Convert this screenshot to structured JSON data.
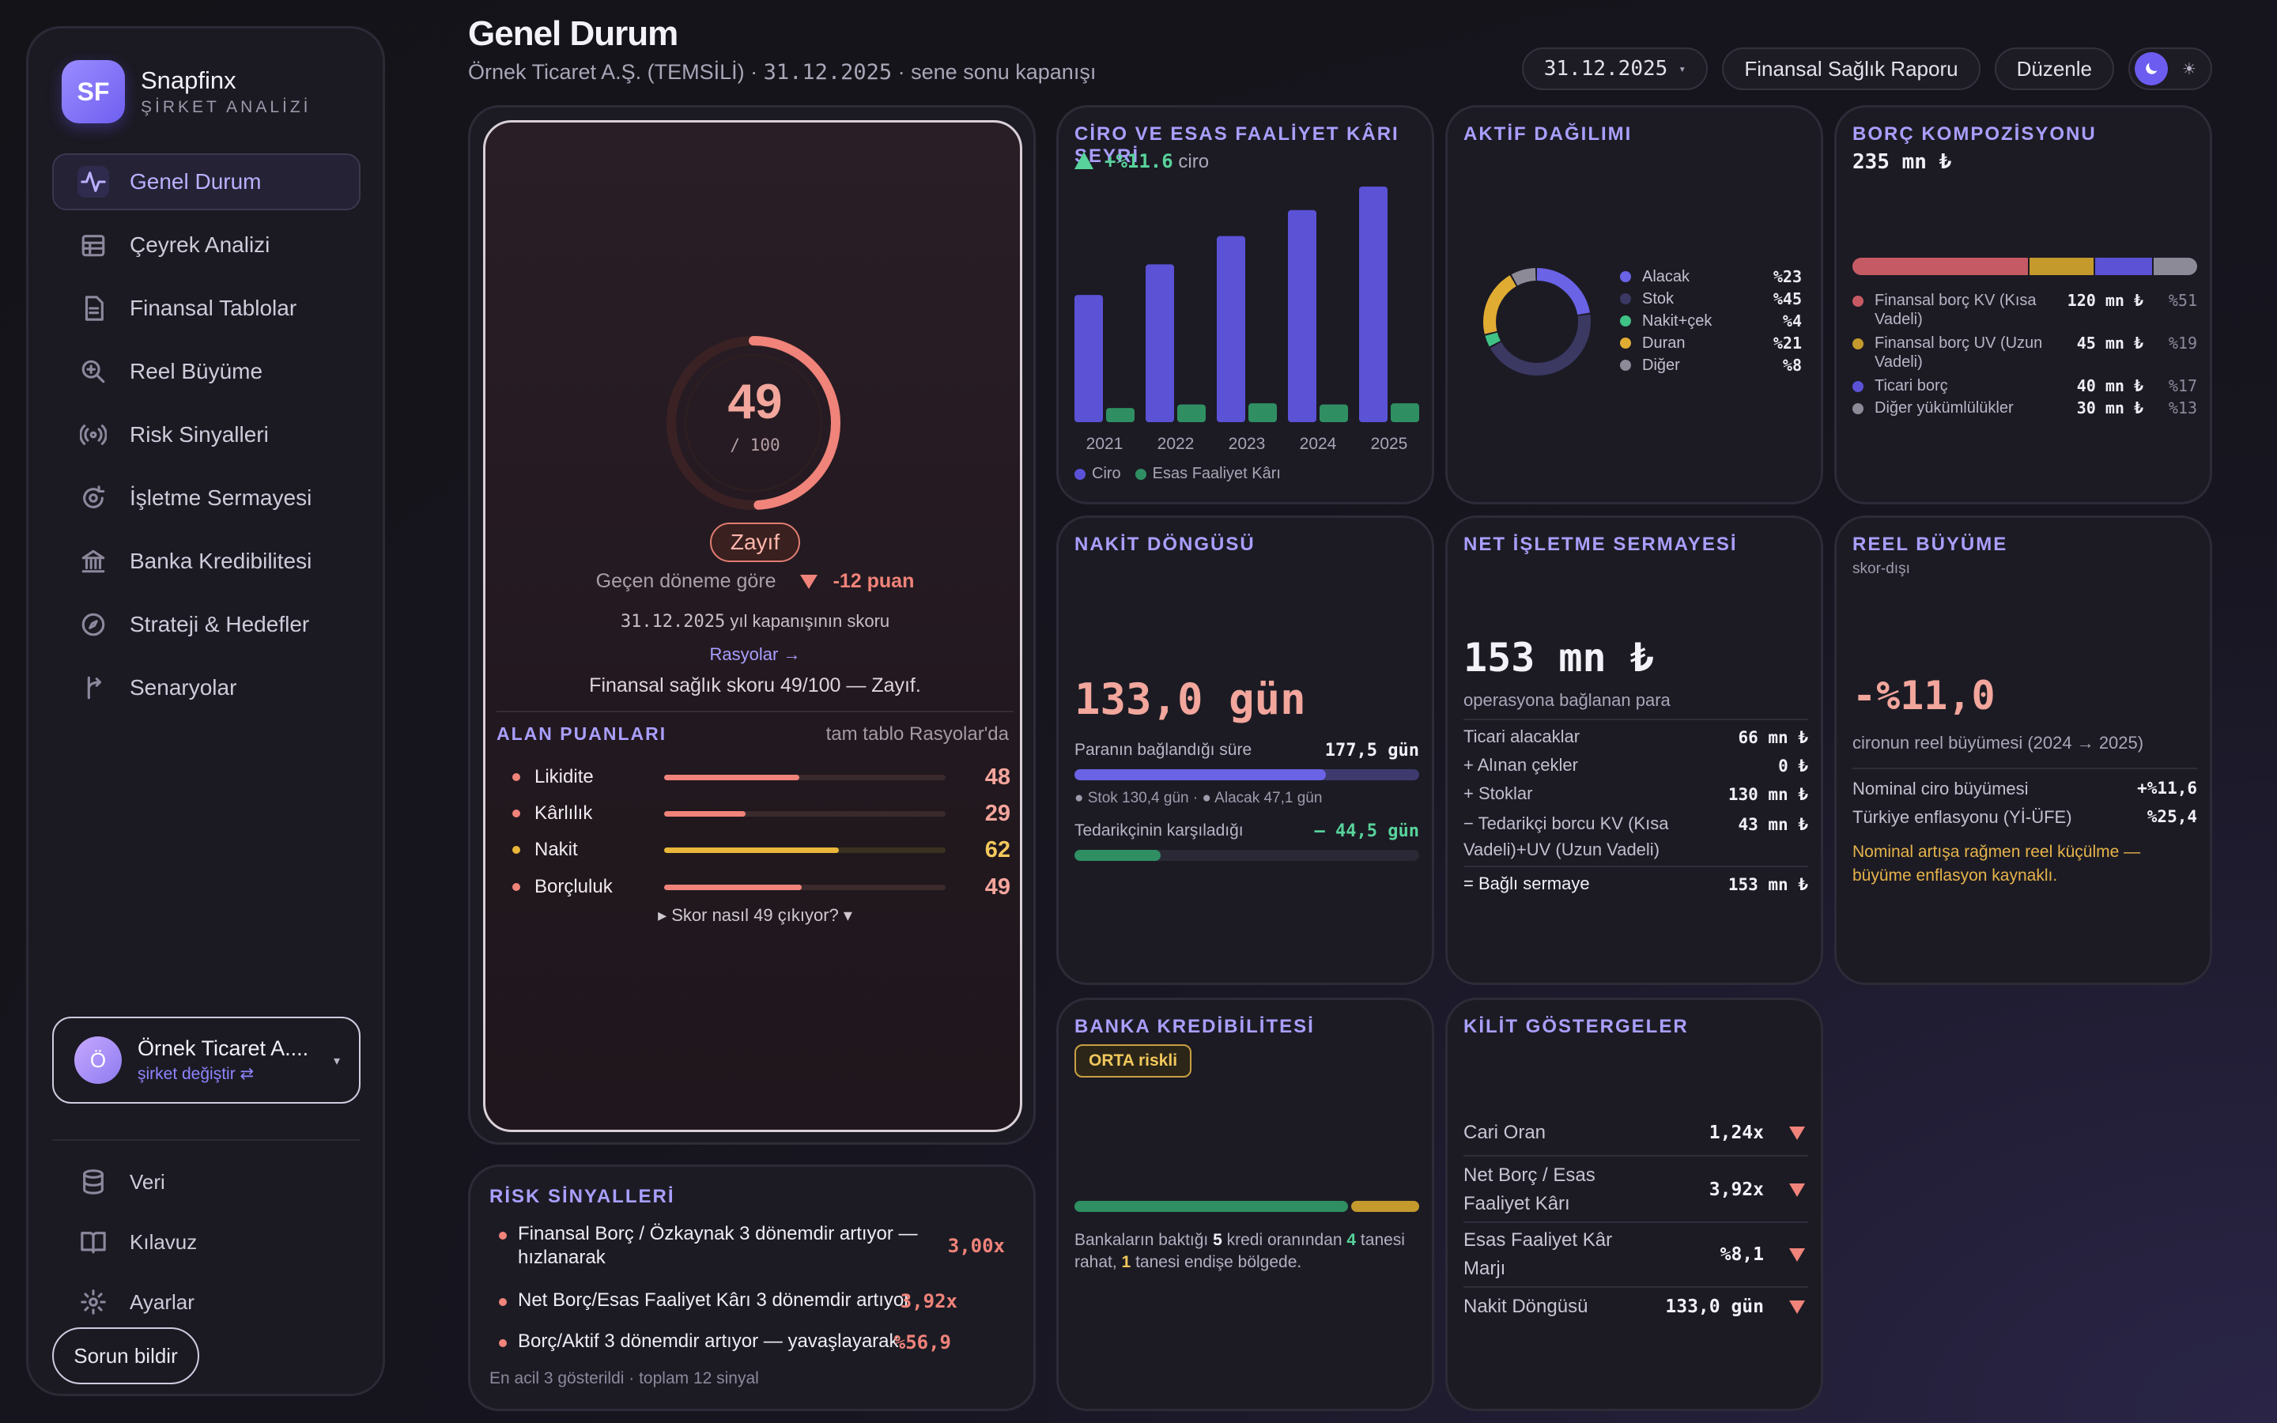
{
  "brand": {
    "logo": "SF",
    "name": "Snapfinx",
    "tagline": "ŞİRKET ANALİZİ"
  },
  "nav": [
    {
      "label": "Genel Durum",
      "icon": "activity-icon"
    },
    {
      "label": "Çeyrek Analizi",
      "icon": "calendar-grid-icon"
    },
    {
      "label": "Finansal Tablolar",
      "icon": "document-icon"
    },
    {
      "label": "Reel Büyüme",
      "icon": "zoom-in-icon"
    },
    {
      "label": "Risk Sinyalleri",
      "icon": "radio-signal-icon"
    },
    {
      "label": "İşletme Sermayesi",
      "icon": "cycle-icon"
    },
    {
      "label": "Banka Kredibilitesi",
      "icon": "bank-icon"
    },
    {
      "label": "Strateji & Hedefler",
      "icon": "compass-icon"
    },
    {
      "label": "Senaryolar",
      "icon": "branch-icon"
    }
  ],
  "company": {
    "avatar": "Ö",
    "name": "Örnek Ticaret A....",
    "switch": "şirket değiştir ⇄"
  },
  "nav2": [
    {
      "label": "Veri",
      "icon": "database-icon"
    },
    {
      "label": "Kılavuz",
      "icon": "book-icon"
    },
    {
      "label": "Ayarlar",
      "icon": "gear-icon"
    }
  ],
  "report_issue": "Sorun bildir",
  "header": {
    "title": "Genel Durum",
    "subtitle_company": "Örnek Ticaret A.Ş. (TEMSİLİ)",
    "subtitle_sep": " · ",
    "subtitle_date": "31.12.2025",
    "subtitle_tail": " · sene sonu kapanışı",
    "date_select": "31.12.2025",
    "report_btn": "Finansal Sağlık Raporu",
    "edit_btn": "Düzenle",
    "sun_glyph": "☀"
  },
  "score": {
    "value": "49",
    "max": "/ 100",
    "fraction": 0.49,
    "grade": "Zayıf",
    "delta_label": "Geçen döneme göre",
    "delta_value": "-12 puan",
    "date": "31.12.2025",
    "date_tail": " yıl kapanışının skoru",
    "ratios_link": "Rasyolar →",
    "summary": "Finansal sağlık skoru 49/100 — Zayıf.",
    "area_title": "ALAN PUANLARI",
    "area_note": "tam tablo Rasyolar'da",
    "areas": [
      {
        "label": "Likidite",
        "value": "48",
        "fraction": 0.48,
        "color": "#f0837a"
      },
      {
        "label": "Kârlılık",
        "value": "29",
        "fraction": 0.29,
        "color": "#f0837a"
      },
      {
        "label": "Nakit",
        "value": "62",
        "fraction": 0.62,
        "color": "#e9b63a"
      },
      {
        "label": "Borçluluk",
        "value": "49",
        "fraction": 0.49,
        "color": "#f0837a"
      }
    ],
    "how": "▸ Skor nasıl 49 çıkıyor? ▾"
  },
  "risk": {
    "title": "RİSK SİNYALLERİ",
    "items": [
      {
        "text": "Finansal Borç / Özkaynak 3 dönemdir artıyor — hızlanarak",
        "value": "3,00x"
      },
      {
        "text": "Net Borç/Esas Faaliyet Kârı 3 dönemdir artıyor",
        "value": "3,92x"
      },
      {
        "text": "Borç/Aktif 3 dönemdir artıyor — yavaşlayarak",
        "value": "%56,9"
      }
    ],
    "footer": "En acil 3 gösterildi · toplam 12 sinyal"
  },
  "ciro": {
    "title": "CİRO VE ESAS FAALİYET KÂRI SEYRİ",
    "growth": "+%11.6",
    "growth_tail": " ciro",
    "legend": [
      "Ciro",
      "Esas Faaliyet Kârı"
    ]
  },
  "chart_data": {
    "type": "bar",
    "categories": [
      "2021",
      "2022",
      "2023",
      "2024",
      "2025"
    ],
    "series": [
      {
        "name": "Ciro",
        "values": [
          54,
          67,
          79,
          90,
          100
        ],
        "color": "#5b52d6"
      },
      {
        "name": "Esas Faaliyet Kârı",
        "values": [
          6,
          7.5,
          8,
          7.5,
          8
        ],
        "color": "#2f8f62"
      }
    ],
    "ylim": [
      0,
      100
    ]
  },
  "aktif": {
    "title": "AKTİF DAĞILIMI",
    "items": [
      {
        "label": "Alacak",
        "pct": "%23",
        "value": 23,
        "color": "#6a63e6"
      },
      {
        "label": "Stok",
        "pct": "%45",
        "value": 45,
        "color": "#3b3862"
      },
      {
        "label": "Nakit+çek",
        "pct": "%4",
        "value": 4,
        "color": "#3fc286"
      },
      {
        "label": "Duran",
        "pct": "%21",
        "value": 21,
        "color": "#e0ac32"
      },
      {
        "label": "Diğer",
        "pct": "%8",
        "value": 8,
        "color": "#8d8a98"
      }
    ]
  },
  "borc": {
    "title": "BORÇ KOMPOZİSYONU",
    "total": "235 mn ₺",
    "items": [
      {
        "label": "Finansal borç KV (Kısa Vadeli)",
        "value": "120 mn ₺",
        "pct": "%51",
        "share": 51,
        "color": "#c65a64"
      },
      {
        "label": "Finansal borç UV (Uzun Vadeli)",
        "value": "45 mn ₺",
        "pct": "%19",
        "share": 19,
        "color": "#c49a2d"
      },
      {
        "label": "Ticari borç",
        "value": "40 mn ₺",
        "pct": "%17",
        "share": 17,
        "color": "#5b52d6"
      },
      {
        "label": "Diğer yükümlülükler",
        "value": "30 mn ₺",
        "pct": "%13",
        "share": 13,
        "color": "#8d8a98"
      }
    ]
  },
  "nakit": {
    "title": "NAKİT DÖNGÜSÜ",
    "value": "133,0 gün",
    "tied_label": "Paranın bağlandığı süre",
    "tied_value": "177,5 gün",
    "tied_split_fraction": 0.73,
    "tied_note": "● Stok 130,4 gün · ● Alacak 47,1 gün",
    "supplier_label": "Tedarikçinin karşıladığı",
    "supplier_value": "– 44,5 gün",
    "supplier_fraction": 0.25
  },
  "nis": {
    "title": "NET İŞLETME SERMAYESİ",
    "value": "153 mn ₺",
    "sub": "operasyona bağlanan para",
    "rows": [
      {
        "label": "Ticari alacaklar",
        "value": "66 mn ₺"
      },
      {
        "label": "+ Alınan çekler",
        "value": "0 ₺"
      },
      {
        "label": "+ Stoklar",
        "value": "130 mn ₺"
      },
      {
        "label": "− Tedarikçi borcu KV (Kısa Vadeli)+UV (Uzun Vadeli)",
        "value": "43 mn ₺"
      }
    ],
    "total_label": "= Bağlı sermaye",
    "total_value": "153 mn ₺"
  },
  "reel": {
    "title": "REEL BÜYÜME",
    "sub": "skor-dışı",
    "value": "-%11,0",
    "caption": "cironun reel büyümesi (2024 → 2025)",
    "rows": [
      {
        "label": "Nominal ciro büyümesi",
        "value": "+%11,6"
      },
      {
        "label": "Türkiye enflasyonu (Yİ-ÜFE)",
        "value": "%25,4"
      }
    ],
    "warning": "Nominal artışa rağmen reel küçülme — büyüme enflasyon kaynaklı."
  },
  "banka": {
    "title": "BANKA KREDİBİLİTESİ",
    "pill": "ORTA riskli",
    "text_a": "Bankaların baktığı ",
    "n_total": "5",
    "text_b": " kredi oranından ",
    "n_ok": "4",
    "text_c": " tanesi rahat, ",
    "n_warn": "1",
    "text_d": " tanesi endişe bölgede.",
    "ok_count": 4,
    "warn_count": 1
  },
  "kilit": {
    "title": "KİLİT GÖSTERGELER",
    "rows": [
      {
        "label": "Cari Oran",
        "value": "1,24x"
      },
      {
        "label": "Net Borç / Esas Faaliyet Kârı",
        "value": "3,92x"
      },
      {
        "label": "Esas Faaliyet Kâr Marjı",
        "value": "%8,1"
      },
      {
        "label": "Nakit Döngüsü",
        "value": "133,0 gün"
      }
    ]
  }
}
